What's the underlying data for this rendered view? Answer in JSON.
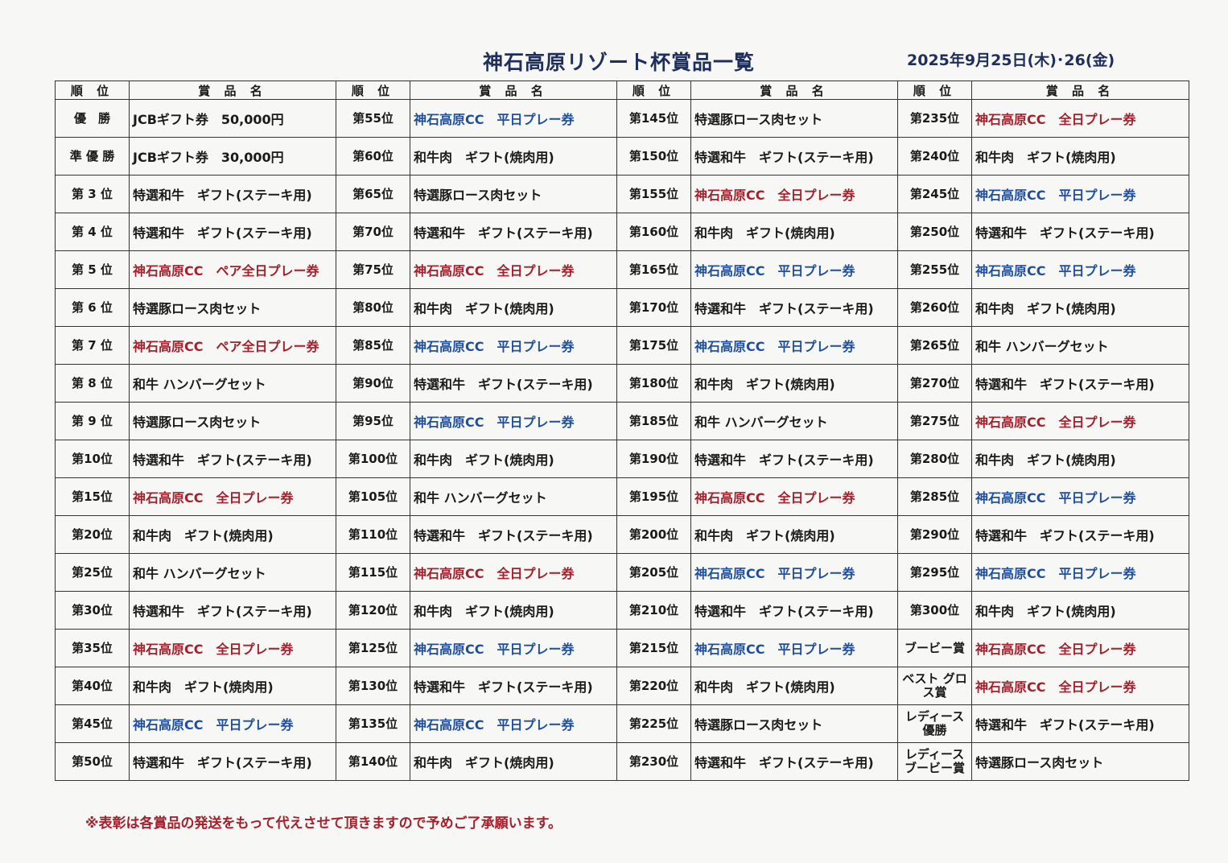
{
  "title": "神石高原リゾート杯賞品一覧",
  "date": "2025年9月25日(木)･26(金)",
  "headers": {
    "rank": "順 位",
    "prize": "賞 品 名"
  },
  "colors": {
    "red": "#a3202c",
    "blue": "#1f4f9c",
    "title": "#1f2f5c"
  },
  "columns": [
    [
      {
        "rank": "優　勝",
        "prize": "JCBギフト券　50,000円",
        "tone": "black"
      },
      {
        "rank": "準 優 勝",
        "prize": "JCBギフト券　30,000円",
        "tone": "black"
      },
      {
        "rank": "第 3 位",
        "prize": "特選和牛　ギフト(ステーキ用)",
        "tone": "black"
      },
      {
        "rank": "第 4 位",
        "prize": "特選和牛　ギフト(ステーキ用)",
        "tone": "black"
      },
      {
        "rank": "第 5 位",
        "prize": "神石高原CC　ペア全日プレー券",
        "tone": "red"
      },
      {
        "rank": "第 6 位",
        "prize": "特選豚ロース肉セット",
        "tone": "black"
      },
      {
        "rank": "第 7 位",
        "prize": "神石高原CC　ペア全日プレー券",
        "tone": "red"
      },
      {
        "rank": "第 8 位",
        "prize": "和牛 ハンバーグセット",
        "tone": "black"
      },
      {
        "rank": "第 9 位",
        "prize": "特選豚ロース肉セット",
        "tone": "black"
      },
      {
        "rank": "第10位",
        "prize": "特選和牛　ギフト(ステーキ用)",
        "tone": "black"
      },
      {
        "rank": "第15位",
        "prize": "神石高原CC　全日プレー券",
        "tone": "red"
      },
      {
        "rank": "第20位",
        "prize": "和牛肉　ギフト(焼肉用)",
        "tone": "black"
      },
      {
        "rank": "第25位",
        "prize": "和牛 ハンバーグセット",
        "tone": "black"
      },
      {
        "rank": "第30位",
        "prize": "特選和牛　ギフト(ステーキ用)",
        "tone": "black"
      },
      {
        "rank": "第35位",
        "prize": "神石高原CC　全日プレー券",
        "tone": "red"
      },
      {
        "rank": "第40位",
        "prize": "和牛肉　ギフト(焼肉用)",
        "tone": "black"
      },
      {
        "rank": "第45位",
        "prize": "神石高原CC　平日プレー券",
        "tone": "blue"
      },
      {
        "rank": "第50位",
        "prize": "特選和牛　ギフト(ステーキ用)",
        "tone": "black"
      }
    ],
    [
      {
        "rank": "第55位",
        "prize": "神石高原CC　平日プレー券",
        "tone": "blue"
      },
      {
        "rank": "第60位",
        "prize": "和牛肉　ギフト(焼肉用)",
        "tone": "black"
      },
      {
        "rank": "第65位",
        "prize": "特選豚ロース肉セット",
        "tone": "black"
      },
      {
        "rank": "第70位",
        "prize": "特選和牛　ギフト(ステーキ用)",
        "tone": "black"
      },
      {
        "rank": "第75位",
        "prize": "神石高原CC　全日プレー券",
        "tone": "red"
      },
      {
        "rank": "第80位",
        "prize": "和牛肉　ギフト(焼肉用)",
        "tone": "black"
      },
      {
        "rank": "第85位",
        "prize": "神石高原CC　平日プレー券",
        "tone": "blue"
      },
      {
        "rank": "第90位",
        "prize": "特選和牛　ギフト(ステーキ用)",
        "tone": "black"
      },
      {
        "rank": "第95位",
        "prize": "神石高原CC　平日プレー券",
        "tone": "blue"
      },
      {
        "rank": "第100位",
        "prize": "和牛肉　ギフト(焼肉用)",
        "tone": "black"
      },
      {
        "rank": "第105位",
        "prize": "和牛 ハンバーグセット",
        "tone": "black"
      },
      {
        "rank": "第110位",
        "prize": "特選和牛　ギフト(ステーキ用)",
        "tone": "black"
      },
      {
        "rank": "第115位",
        "prize": "神石高原CC　全日プレー券",
        "tone": "red"
      },
      {
        "rank": "第120位",
        "prize": "和牛肉　ギフト(焼肉用)",
        "tone": "black"
      },
      {
        "rank": "第125位",
        "prize": "神石高原CC　平日プレー券",
        "tone": "blue"
      },
      {
        "rank": "第130位",
        "prize": "特選和牛　ギフト(ステーキ用)",
        "tone": "black"
      },
      {
        "rank": "第135位",
        "prize": "神石高原CC　平日プレー券",
        "tone": "blue"
      },
      {
        "rank": "第140位",
        "prize": "和牛肉　ギフト(焼肉用)",
        "tone": "black"
      }
    ],
    [
      {
        "rank": "第145位",
        "prize": "特選豚ロース肉セット",
        "tone": "black"
      },
      {
        "rank": "第150位",
        "prize": "特選和牛　ギフト(ステーキ用)",
        "tone": "black"
      },
      {
        "rank": "第155位",
        "prize": "神石高原CC　全日プレー券",
        "tone": "red"
      },
      {
        "rank": "第160位",
        "prize": "和牛肉　ギフト(焼肉用)",
        "tone": "black"
      },
      {
        "rank": "第165位",
        "prize": "神石高原CC　平日プレー券",
        "tone": "blue"
      },
      {
        "rank": "第170位",
        "prize": "特選和牛　ギフト(ステーキ用)",
        "tone": "black"
      },
      {
        "rank": "第175位",
        "prize": "神石高原CC　平日プレー券",
        "tone": "blue"
      },
      {
        "rank": "第180位",
        "prize": "和牛肉　ギフト(焼肉用)",
        "tone": "black"
      },
      {
        "rank": "第185位",
        "prize": "和牛 ハンバーグセット",
        "tone": "black"
      },
      {
        "rank": "第190位",
        "prize": "特選和牛　ギフト(ステーキ用)",
        "tone": "black"
      },
      {
        "rank": "第195位",
        "prize": "神石高原CC　全日プレー券",
        "tone": "red"
      },
      {
        "rank": "第200位",
        "prize": "和牛肉　ギフト(焼肉用)",
        "tone": "black"
      },
      {
        "rank": "第205位",
        "prize": "神石高原CC　平日プレー券",
        "tone": "blue"
      },
      {
        "rank": "第210位",
        "prize": "特選和牛　ギフト(ステーキ用)",
        "tone": "black"
      },
      {
        "rank": "第215位",
        "prize": "神石高原CC　平日プレー券",
        "tone": "blue"
      },
      {
        "rank": "第220位",
        "prize": "和牛肉　ギフト(焼肉用)",
        "tone": "black"
      },
      {
        "rank": "第225位",
        "prize": "特選豚ロース肉セット",
        "tone": "black"
      },
      {
        "rank": "第230位",
        "prize": "特選和牛　ギフト(ステーキ用)",
        "tone": "black"
      }
    ],
    [
      {
        "rank": "第235位",
        "prize": "神石高原CC　全日プレー券",
        "tone": "red"
      },
      {
        "rank": "第240位",
        "prize": "和牛肉　ギフト(焼肉用)",
        "tone": "black"
      },
      {
        "rank": "第245位",
        "prize": "神石高原CC　平日プレー券",
        "tone": "blue"
      },
      {
        "rank": "第250位",
        "prize": "特選和牛　ギフト(ステーキ用)",
        "tone": "black"
      },
      {
        "rank": "第255位",
        "prize": "神石高原CC　平日プレー券",
        "tone": "blue"
      },
      {
        "rank": "第260位",
        "prize": "和牛肉　ギフト(焼肉用)",
        "tone": "black"
      },
      {
        "rank": "第265位",
        "prize": "和牛 ハンバーグセット",
        "tone": "black"
      },
      {
        "rank": "第270位",
        "prize": "特選和牛　ギフト(ステーキ用)",
        "tone": "black"
      },
      {
        "rank": "第275位",
        "prize": "神石高原CC　全日プレー券",
        "tone": "red"
      },
      {
        "rank": "第280位",
        "prize": "和牛肉　ギフト(焼肉用)",
        "tone": "black"
      },
      {
        "rank": "第285位",
        "prize": "神石高原CC　平日プレー券",
        "tone": "blue"
      },
      {
        "rank": "第290位",
        "prize": "特選和牛　ギフト(ステーキ用)",
        "tone": "black"
      },
      {
        "rank": "第295位",
        "prize": "神石高原CC　平日プレー券",
        "tone": "blue"
      },
      {
        "rank": "第300位",
        "prize": "和牛肉　ギフト(焼肉用)",
        "tone": "black"
      },
      {
        "rank": "ブービー賞",
        "prize": "神石高原CC　全日プレー券",
        "tone": "red"
      },
      {
        "rank": "ベスト グロス賞",
        "prize": "神石高原CC　全日プレー券",
        "tone": "red"
      },
      {
        "rank": "レディース 優勝",
        "prize": "特選和牛　ギフト(ステーキ用)",
        "tone": "black"
      },
      {
        "rank": "レディース ブービー賞",
        "prize": "特選豚ロース肉セット",
        "tone": "black"
      }
    ]
  ],
  "note": "※表彰は各賞品の発送をもって代えさせて頂きますので予めご了承願います。"
}
